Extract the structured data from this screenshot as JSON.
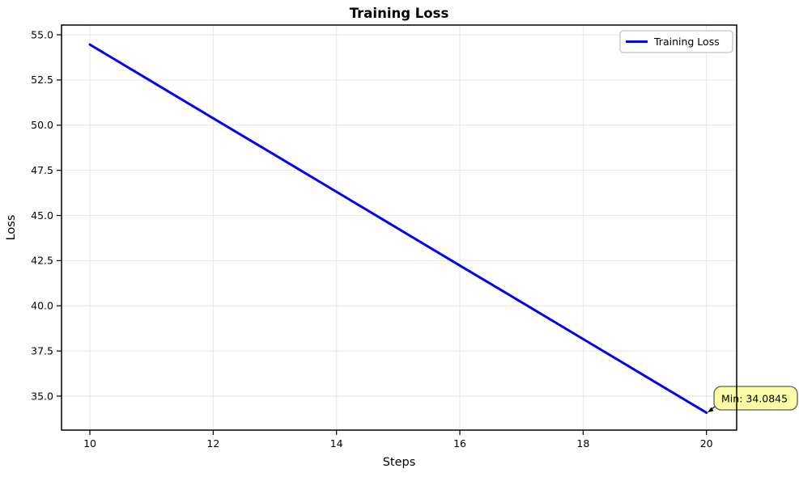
{
  "figure": {
    "background": "#ffffff"
  },
  "chart_data": {
    "type": "line",
    "title": "Training Loss",
    "xlabel": "Steps",
    "ylabel": "Loss",
    "x": [
      10,
      11,
      12,
      13,
      14,
      15,
      16,
      17,
      18,
      19,
      20
    ],
    "series": [
      {
        "name": "Training Loss",
        "color": "#0000ff",
        "line_width": 3,
        "values": [
          54.46,
          52.42,
          50.38,
          48.35,
          46.31,
          44.27,
          42.23,
          40.2,
          38.16,
          36.12,
          34.0845
        ]
      }
    ],
    "xlim": [
      9.54,
      20.49
    ],
    "ylim": [
      33.12,
      55.54
    ],
    "xticks": [
      10,
      12,
      14,
      16,
      18,
      20
    ],
    "xtick_labels": [
      "10",
      "12",
      "14",
      "16",
      "18",
      "20"
    ],
    "yticks": [
      35.0,
      37.5,
      40.0,
      42.5,
      45.0,
      47.5,
      50.0,
      52.5,
      55.0
    ],
    "ytick_labels": [
      "35.0",
      "37.5",
      "40.0",
      "42.5",
      "45.0",
      "47.5",
      "50.0",
      "52.5",
      "55.0"
    ],
    "grid": true,
    "legend": {
      "position": "top-right",
      "entries": [
        {
          "label": "Training Loss",
          "color": "#0000ff"
        }
      ]
    },
    "annotation": {
      "text": "Min: 34.0845",
      "target_x": 20,
      "target_y": 34.0845,
      "bg": "#fbfba6",
      "border": "#61614d",
      "arrow_color": "#000000"
    },
    "colors": {
      "line": "#0000ff",
      "grid": "#e6e6e6",
      "spine": "#000000",
      "text": "#000000"
    }
  }
}
